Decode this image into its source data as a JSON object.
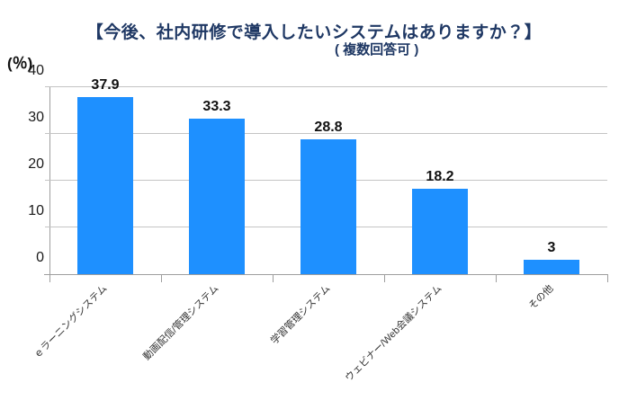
{
  "header": {
    "title": "【今後、社内研修で導入したいシステムはありますか？】",
    "subtitle": "( 複数回答可 )",
    "unit_label": "(％)"
  },
  "colors": {
    "bar": "#1E90FF",
    "title": "#1F3864",
    "gridline": "#C4C4C4",
    "axis": "#9E9E9E"
  },
  "chart_data": {
    "type": "bar",
    "title": "【今後、社内研修で導入したいシステムはありますか？】",
    "subtitle": "( 複数回答可 )",
    "ylabel": "(％)",
    "xlabel": "",
    "categories": [
      "ｅラーニングシステム",
      "動画配信/管理システム",
      "学習管理システム",
      "ウェビナー/Web会議システム",
      "その他"
    ],
    "values": [
      37.9,
      33.3,
      28.8,
      18.2,
      3
    ],
    "value_labels": [
      "37.9",
      "33.3",
      "28.8",
      "18.2",
      "3"
    ],
    "ylim": [
      0,
      40
    ],
    "yticks": [
      0,
      10,
      20,
      30,
      40
    ],
    "grid": true,
    "legend": false,
    "data_labels": true,
    "category_label_rotation_deg": 45
  }
}
